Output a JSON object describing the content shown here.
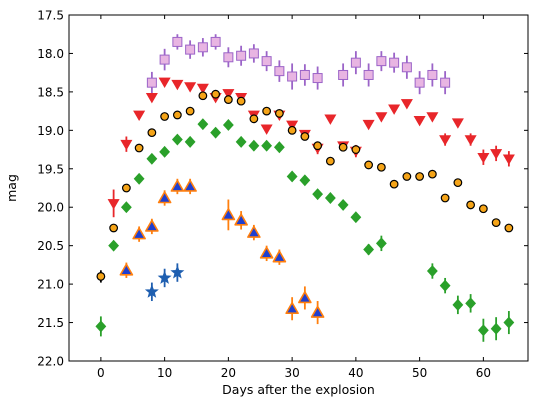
{
  "chart_data": {
    "type": "scatter",
    "xlabel": "Days after the explosion",
    "ylabel": "mag",
    "xlim": [
      -5,
      67
    ],
    "ylim": [
      22.0,
      17.5
    ],
    "y_inverted": true,
    "xticks": [
      0,
      10,
      20,
      30,
      40,
      50,
      60
    ],
    "yticks": [
      17.5,
      18.0,
      18.5,
      19.0,
      19.5,
      20.0,
      20.5,
      21.0,
      21.5,
      22.0
    ],
    "grid": false,
    "series": [
      {
        "marker": "square",
        "color": "#e8b5e2",
        "edge": "#9b64c8",
        "points": [
          {
            "x": 8,
            "y": 18.38,
            "err": 0.14
          },
          {
            "x": 10,
            "y": 18.08,
            "err": 0.14
          },
          {
            "x": 12,
            "y": 17.85,
            "err": 0.1
          },
          {
            "x": 14,
            "y": 17.95,
            "err": 0.12
          },
          {
            "x": 16,
            "y": 17.92,
            "err": 0.12
          },
          {
            "x": 18,
            "y": 17.85,
            "err": 0.1
          },
          {
            "x": 20,
            "y": 18.05,
            "err": 0.13
          },
          {
            "x": 22,
            "y": 18.03,
            "err": 0.13
          },
          {
            "x": 24,
            "y": 18.0,
            "err": 0.12
          },
          {
            "x": 26,
            "y": 18.1,
            "err": 0.13
          },
          {
            "x": 28,
            "y": 18.23,
            "err": 0.14
          },
          {
            "x": 30,
            "y": 18.3,
            "err": 0.17
          },
          {
            "x": 32,
            "y": 18.28,
            "err": 0.14
          },
          {
            "x": 34,
            "y": 18.32,
            "err": 0.15
          },
          {
            "x": 38,
            "y": 18.28,
            "err": 0.15
          },
          {
            "x": 40,
            "y": 18.12,
            "err": 0.15
          },
          {
            "x": 42,
            "y": 18.28,
            "err": 0.15
          },
          {
            "x": 44,
            "y": 18.1,
            "err": 0.13
          },
          {
            "x": 46,
            "y": 18.12,
            "err": 0.13
          },
          {
            "x": 48,
            "y": 18.18,
            "err": 0.15
          },
          {
            "x": 50,
            "y": 18.38,
            "err": 0.15
          },
          {
            "x": 52,
            "y": 18.28,
            "err": 0.15
          },
          {
            "x": 54,
            "y": 18.38,
            "err": 0.15
          }
        ]
      },
      {
        "marker": "triangle-down",
        "color": "#e8262a",
        "edge": "#e8262a",
        "points": [
          {
            "x": 2,
            "y": 19.95,
            "err": 0.18
          },
          {
            "x": 4,
            "y": 19.18,
            "err": 0.1
          },
          {
            "x": 6,
            "y": 18.8,
            "err": 0
          },
          {
            "x": 8,
            "y": 18.57,
            "err": 0
          },
          {
            "x": 10,
            "y": 18.37,
            "err": 0
          },
          {
            "x": 12,
            "y": 18.4,
            "err": 0
          },
          {
            "x": 14,
            "y": 18.43,
            "err": 0
          },
          {
            "x": 16,
            "y": 18.45,
            "err": 0
          },
          {
            "x": 18,
            "y": 18.57,
            "err": 0
          },
          {
            "x": 20,
            "y": 18.52,
            "err": 0
          },
          {
            "x": 22,
            "y": 18.57,
            "err": 0
          },
          {
            "x": 24,
            "y": 18.8,
            "err": 0
          },
          {
            "x": 26,
            "y": 18.98,
            "err": 0
          },
          {
            "x": 28,
            "y": 18.8,
            "err": 0
          },
          {
            "x": 30,
            "y": 18.93,
            "err": 0
          },
          {
            "x": 32,
            "y": 19.05,
            "err": 0
          },
          {
            "x": 34,
            "y": 19.23,
            "err": 0.08
          },
          {
            "x": 36,
            "y": 18.85,
            "err": 0
          },
          {
            "x": 38,
            "y": 19.2,
            "err": 0
          },
          {
            "x": 40,
            "y": 19.27,
            "err": 0.08
          },
          {
            "x": 42,
            "y": 18.92,
            "err": 0
          },
          {
            "x": 44,
            "y": 18.82,
            "err": 0
          },
          {
            "x": 46,
            "y": 18.72,
            "err": 0
          },
          {
            "x": 48,
            "y": 18.65,
            "err": 0
          },
          {
            "x": 50,
            "y": 18.87,
            "err": 0
          },
          {
            "x": 52,
            "y": 18.82,
            "err": 0
          },
          {
            "x": 54,
            "y": 19.12,
            "err": 0.08
          },
          {
            "x": 56,
            "y": 18.9,
            "err": 0
          },
          {
            "x": 58,
            "y": 19.12,
            "err": 0.08
          },
          {
            "x": 60,
            "y": 19.35,
            "err": 0.1
          },
          {
            "x": 62,
            "y": 19.3,
            "err": 0.1
          },
          {
            "x": 64,
            "y": 19.37,
            "err": 0.1
          }
        ]
      },
      {
        "marker": "circle",
        "color": "#f5a418",
        "edge": "#000000",
        "points": [
          {
            "x": 0,
            "y": 20.9,
            "err": 0.08
          },
          {
            "x": 2,
            "y": 20.27,
            "err": 0.05
          },
          {
            "x": 4,
            "y": 19.75,
            "err": 0.04
          },
          {
            "x": 6,
            "y": 19.23,
            "err": 0
          },
          {
            "x": 8,
            "y": 19.03,
            "err": 0
          },
          {
            "x": 10,
            "y": 18.82,
            "err": 0
          },
          {
            "x": 12,
            "y": 18.8,
            "err": 0
          },
          {
            "x": 14,
            "y": 18.75,
            "err": 0
          },
          {
            "x": 16,
            "y": 18.55,
            "err": 0
          },
          {
            "x": 18,
            "y": 18.53,
            "err": 0
          },
          {
            "x": 20,
            "y": 18.6,
            "err": 0
          },
          {
            "x": 22,
            "y": 18.62,
            "err": 0
          },
          {
            "x": 24,
            "y": 18.85,
            "err": 0
          },
          {
            "x": 26,
            "y": 18.75,
            "err": 0
          },
          {
            "x": 28,
            "y": 18.78,
            "err": 0
          },
          {
            "x": 30,
            "y": 19.0,
            "err": 0
          },
          {
            "x": 32,
            "y": 19.08,
            "err": 0
          },
          {
            "x": 34,
            "y": 19.2,
            "err": 0
          },
          {
            "x": 36,
            "y": 19.4,
            "err": 0
          },
          {
            "x": 38,
            "y": 19.22,
            "err": 0
          },
          {
            "x": 40,
            "y": 19.25,
            "err": 0
          },
          {
            "x": 42,
            "y": 19.45,
            "err": 0
          },
          {
            "x": 44,
            "y": 19.48,
            "err": 0
          },
          {
            "x": 46,
            "y": 19.7,
            "err": 0.05
          },
          {
            "x": 48,
            "y": 19.6,
            "err": 0
          },
          {
            "x": 50,
            "y": 19.6,
            "err": 0
          },
          {
            "x": 52,
            "y": 19.57,
            "err": 0
          },
          {
            "x": 54,
            "y": 19.88,
            "err": 0
          },
          {
            "x": 56,
            "y": 19.68,
            "err": 0
          },
          {
            "x": 58,
            "y": 19.97,
            "err": 0
          },
          {
            "x": 60,
            "y": 20.02,
            "err": 0
          },
          {
            "x": 62,
            "y": 20.2,
            "err": 0
          },
          {
            "x": 64,
            "y": 20.27,
            "err": 0.04
          }
        ]
      },
      {
        "marker": "diamond",
        "color": "#2aa02a",
        "edge": "#2aa02a",
        "points": [
          {
            "x": 0,
            "y": 21.55,
            "err": 0.13
          },
          {
            "x": 2,
            "y": 20.5,
            "err": 0
          },
          {
            "x": 4,
            "y": 20.0,
            "err": 0
          },
          {
            "x": 6,
            "y": 19.63,
            "err": 0
          },
          {
            "x": 8,
            "y": 19.37,
            "err": 0
          },
          {
            "x": 10,
            "y": 19.28,
            "err": 0
          },
          {
            "x": 12,
            "y": 19.12,
            "err": 0
          },
          {
            "x": 14,
            "y": 19.15,
            "err": 0
          },
          {
            "x": 16,
            "y": 18.92,
            "err": 0
          },
          {
            "x": 18,
            "y": 19.03,
            "err": 0
          },
          {
            "x": 20,
            "y": 18.93,
            "err": 0
          },
          {
            "x": 22,
            "y": 19.15,
            "err": 0
          },
          {
            "x": 24,
            "y": 19.2,
            "err": 0
          },
          {
            "x": 26,
            "y": 19.2,
            "err": 0
          },
          {
            "x": 28,
            "y": 19.22,
            "err": 0
          },
          {
            "x": 30,
            "y": 19.6,
            "err": 0
          },
          {
            "x": 32,
            "y": 19.65,
            "err": 0
          },
          {
            "x": 34,
            "y": 19.83,
            "err": 0
          },
          {
            "x": 36,
            "y": 19.88,
            "err": 0
          },
          {
            "x": 38,
            "y": 19.97,
            "err": 0
          },
          {
            "x": 40,
            "y": 20.13,
            "err": 0
          },
          {
            "x": 42,
            "y": 20.55,
            "err": 0.07
          },
          {
            "x": 44,
            "y": 20.47,
            "err": 0.1
          },
          {
            "x": 52,
            "y": 20.83,
            "err": 0.1
          },
          {
            "x": 54,
            "y": 21.02,
            "err": 0.1
          },
          {
            "x": 56,
            "y": 21.27,
            "err": 0.12
          },
          {
            "x": 58,
            "y": 21.25,
            "err": 0.12
          },
          {
            "x": 60,
            "y": 21.6,
            "err": 0.15
          },
          {
            "x": 62,
            "y": 21.58,
            "err": 0.15
          },
          {
            "x": 64,
            "y": 21.5,
            "err": 0.15
          }
        ]
      },
      {
        "marker": "triangle-up",
        "color": "#1f3fd0",
        "edge": "#ff7f0e",
        "points": [
          {
            "x": 4,
            "y": 20.82,
            "err": 0.1
          },
          {
            "x": 6,
            "y": 20.35,
            "err": 0.1
          },
          {
            "x": 8,
            "y": 20.25,
            "err": 0.1
          },
          {
            "x": 10,
            "y": 19.88,
            "err": 0.1
          },
          {
            "x": 12,
            "y": 19.73,
            "err": 0.1
          },
          {
            "x": 14,
            "y": 19.73,
            "err": 0.1
          },
          {
            "x": 20,
            "y": 20.1,
            "err": 0.2
          },
          {
            "x": 22,
            "y": 20.17,
            "err": 0.12
          },
          {
            "x": 24,
            "y": 20.33,
            "err": 0.1
          },
          {
            "x": 26,
            "y": 20.6,
            "err": 0.1
          },
          {
            "x": 28,
            "y": 20.65,
            "err": 0.1
          },
          {
            "x": 30,
            "y": 21.32,
            "err": 0.15
          },
          {
            "x": 32,
            "y": 21.18,
            "err": 0.15
          },
          {
            "x": 34,
            "y": 21.37,
            "err": 0.15
          }
        ]
      },
      {
        "marker": "star",
        "color": "#1f5fb0",
        "edge": "#1f5fb0",
        "points": [
          {
            "x": 8,
            "y": 21.1,
            "err": 0.12
          },
          {
            "x": 10,
            "y": 20.92,
            "err": 0.12
          },
          {
            "x": 12,
            "y": 20.85,
            "err": 0.12
          }
        ]
      }
    ]
  }
}
